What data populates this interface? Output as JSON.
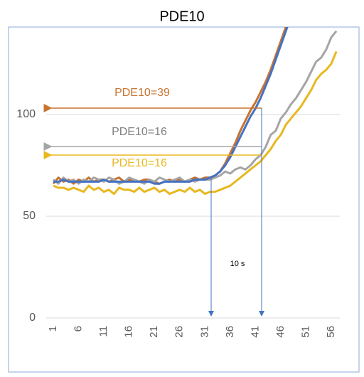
{
  "chart_data": {
    "type": "line",
    "title": "PDE10",
    "categories": [
      "1",
      null,
      null,
      null,
      null,
      "6",
      null,
      null,
      null,
      null,
      "11",
      null,
      null,
      null,
      null,
      "16",
      null,
      null,
      null,
      null,
      "21",
      null,
      null,
      null,
      null,
      "26",
      null,
      null,
      null,
      null,
      "31",
      null,
      null,
      null,
      null,
      "36",
      null,
      null,
      null,
      null,
      "41",
      null,
      null,
      null,
      null,
      "46",
      null,
      null,
      null,
      null,
      "51",
      null,
      null,
      null,
      null,
      "56",
      null
    ],
    "series": [
      {
        "color": "#c8732e",
        "values": [
          66,
          69,
          67,
          68,
          66,
          68,
          67,
          69,
          67,
          68,
          68,
          67,
          68,
          69,
          67,
          68,
          68,
          67,
          68,
          68,
          67,
          66,
          67,
          68,
          67,
          68,
          67,
          68,
          69,
          68,
          69,
          69,
          70,
          72,
          76,
          81,
          86,
          92,
          97,
          102,
          106,
          111,
          116,
          122,
          129,
          136,
          143,
          150,
          null,
          null,
          null,
          null,
          null,
          null,
          null,
          null,
          null
        ]
      },
      {
        "color": "#a5a5a5",
        "values": [
          68,
          66,
          69,
          67,
          68,
          66,
          68,
          67,
          69,
          68,
          67,
          69,
          68,
          66,
          67,
          69,
          68,
          67,
          66,
          68,
          67,
          69,
          68,
          67,
          68,
          69,
          67,
          68,
          67,
          68,
          68,
          68,
          69,
          70,
          72,
          71,
          73,
          74,
          73,
          75,
          78,
          80,
          84,
          90,
          92,
          98,
          101,
          105,
          108,
          112,
          116,
          121,
          126,
          128,
          132,
          138,
          141
        ]
      },
      {
        "color": "#e8b820",
        "values": [
          65,
          64,
          64,
          63,
          64,
          63,
          62,
          65,
          63,
          64,
          62,
          63,
          61,
          64,
          63,
          63,
          62,
          64,
          62,
          63,
          64,
          62,
          63,
          61,
          62,
          63,
          62,
          64,
          62,
          63,
          61,
          62,
          62,
          63,
          64,
          65,
          67,
          69,
          71,
          73,
          75,
          77,
          80,
          83,
          87,
          90,
          95,
          98,
          101,
          104,
          108,
          112,
          117,
          120,
          122,
          125,
          131
        ]
      },
      {
        "color": "#4472c4",
        "values": [
          67,
          67,
          68,
          67,
          67,
          67,
          67,
          67,
          67,
          67,
          68,
          67,
          67,
          67,
          67,
          67,
          67,
          67,
          67,
          67,
          66,
          66,
          67,
          67,
          67,
          67,
          67,
          67,
          68,
          68,
          68,
          69,
          70,
          72,
          75,
          79,
          84,
          89,
          94,
          99,
          103,
          108,
          114,
          120,
          127,
          134,
          141,
          148,
          null,
          null,
          null,
          null,
          null,
          null,
          null,
          null,
          null
        ]
      }
    ],
    "ylim": [
      0,
      143
    ],
    "yticks": [
      0,
      50,
      100
    ],
    "grid": true,
    "annotations": [
      {
        "text": "PDE10=39",
        "color": "#c8732e"
      },
      {
        "text": "PDE10=16",
        "color": "#7f7f7f"
      },
      {
        "text": "PDE10=16",
        "color": "#e8b820"
      },
      {
        "text": "10 s",
        "color": "#000000"
      }
    ]
  }
}
